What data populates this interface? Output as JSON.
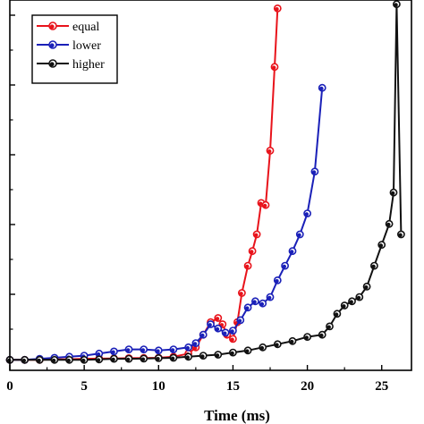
{
  "chart_data": {
    "type": "line",
    "xlabel": "Time (ms)",
    "ylabel": "",
    "xlim": [
      0,
      27
    ],
    "x_ticks": [
      0,
      5,
      10,
      15,
      20,
      25
    ],
    "x_tick_labels": [
      "0",
      "5",
      "10",
      "15",
      "20",
      "25"
    ],
    "grid": false,
    "legend": "top-left",
    "series": [
      {
        "name": "equal",
        "color": "#e8131b",
        "marker": "circle",
        "points": [
          [
            0,
            1.0
          ],
          [
            1,
            1.0
          ],
          [
            2,
            1.0
          ],
          [
            3,
            1.02
          ],
          [
            4,
            1.03
          ],
          [
            5,
            1.05
          ],
          [
            6,
            1.06
          ],
          [
            7,
            1.07
          ],
          [
            8,
            1.08
          ],
          [
            9,
            1.09
          ],
          [
            10,
            1.1
          ],
          [
            11,
            1.15
          ],
          [
            12,
            1.3
          ],
          [
            12.5,
            1.6
          ],
          [
            13,
            2.2
          ],
          [
            13.5,
            2.8
          ],
          [
            14,
            3.0
          ],
          [
            14.3,
            2.7
          ],
          [
            14.6,
            2.2
          ],
          [
            15,
            2.0
          ],
          [
            15.3,
            2.8
          ],
          [
            15.6,
            4.2
          ],
          [
            16,
            5.5
          ],
          [
            16.3,
            6.2
          ],
          [
            16.6,
            7.0
          ],
          [
            16.9,
            8.5
          ],
          [
            17.2,
            8.4
          ],
          [
            17.5,
            11.0
          ],
          [
            17.8,
            15.0
          ],
          [
            18.0,
            17.8
          ]
        ]
      },
      {
        "name": "lower",
        "color": "#1a20b8",
        "marker": "circle",
        "points": [
          [
            0,
            1.0
          ],
          [
            1,
            1.0
          ],
          [
            2,
            1.05
          ],
          [
            3,
            1.1
          ],
          [
            4,
            1.15
          ],
          [
            5,
            1.2
          ],
          [
            6,
            1.3
          ],
          [
            7,
            1.4
          ],
          [
            8,
            1.5
          ],
          [
            9,
            1.5
          ],
          [
            10,
            1.45
          ],
          [
            11,
            1.5
          ],
          [
            12,
            1.6
          ],
          [
            12.5,
            1.8
          ],
          [
            13,
            2.2
          ],
          [
            13.5,
            2.7
          ],
          [
            14,
            2.5
          ],
          [
            14.5,
            2.3
          ],
          [
            15,
            2.4
          ],
          [
            15.5,
            2.9
          ],
          [
            16,
            3.5
          ],
          [
            16.5,
            3.8
          ],
          [
            17,
            3.7
          ],
          [
            17.5,
            4.0
          ],
          [
            18,
            4.8
          ],
          [
            18.5,
            5.5
          ],
          [
            19,
            6.2
          ],
          [
            19.5,
            7.0
          ],
          [
            20,
            8.0
          ],
          [
            20.5,
            10.0
          ],
          [
            21,
            14.0
          ]
        ]
      },
      {
        "name": "higher",
        "color": "#111111",
        "marker": "circle",
        "points": [
          [
            0,
            1.0
          ],
          [
            1,
            1.0
          ],
          [
            2,
            1.0
          ],
          [
            3,
            1.0
          ],
          [
            4,
            1.0
          ],
          [
            5,
            1.0
          ],
          [
            6,
            1.02
          ],
          [
            7,
            1.05
          ],
          [
            8,
            1.05
          ],
          [
            9,
            1.06
          ],
          [
            10,
            1.08
          ],
          [
            11,
            1.1
          ],
          [
            12,
            1.15
          ],
          [
            13,
            1.2
          ],
          [
            14,
            1.25
          ],
          [
            15,
            1.35
          ],
          [
            16,
            1.45
          ],
          [
            17,
            1.6
          ],
          [
            18,
            1.75
          ],
          [
            19,
            1.9
          ],
          [
            20,
            2.1
          ],
          [
            21,
            2.2
          ],
          [
            21.5,
            2.6
          ],
          [
            22,
            3.2
          ],
          [
            22.5,
            3.6
          ],
          [
            23,
            3.8
          ],
          [
            23.5,
            4.0
          ],
          [
            24,
            4.5
          ],
          [
            24.5,
            5.5
          ],
          [
            25,
            6.5
          ],
          [
            25.5,
            7.5
          ],
          [
            25.8,
            9.0
          ],
          [
            26.0,
            18.0
          ],
          [
            26.3,
            7.0
          ]
        ]
      }
    ]
  }
}
